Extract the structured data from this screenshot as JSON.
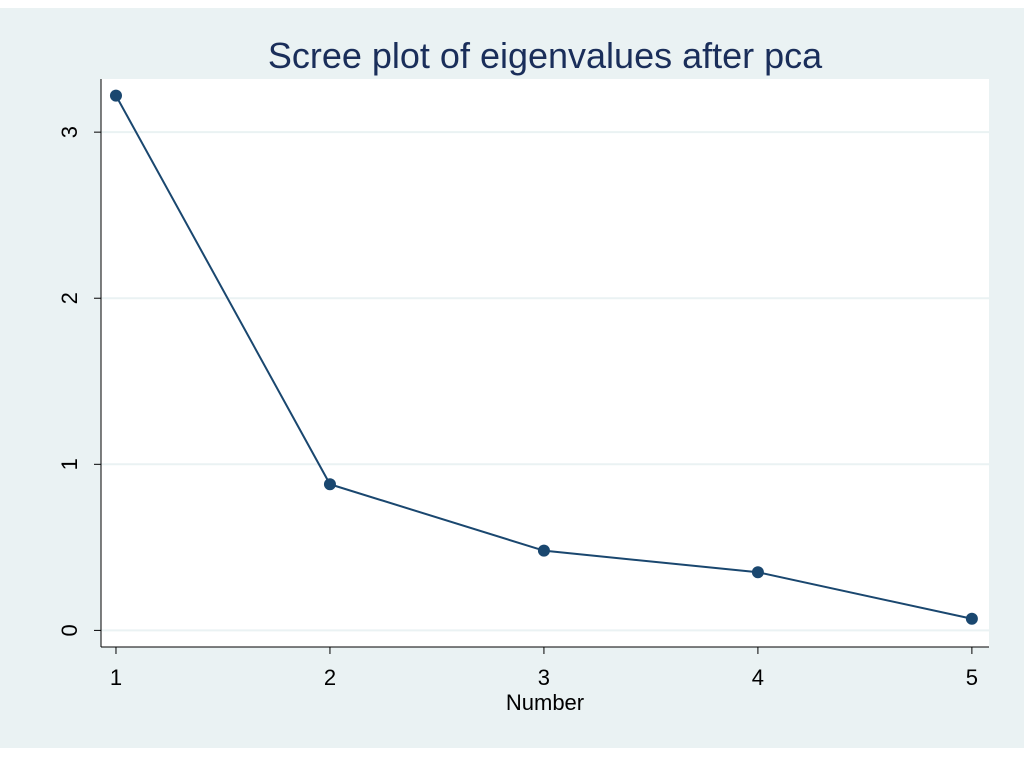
{
  "chart_data": {
    "type": "line",
    "title": "Scree plot of eigenvalues after pca",
    "xlabel": "Number",
    "ylabel": "",
    "x": [
      1,
      2,
      3,
      4,
      5
    ],
    "series": [
      {
        "values": [
          3.22,
          0.88,
          0.48,
          0.35,
          0.07
        ]
      }
    ],
    "xticks": [
      "1",
      "2",
      "3",
      "4",
      "5"
    ],
    "yticks": [
      "0",
      "1",
      "2",
      "3"
    ],
    "xlim": [
      0.93,
      5.08
    ],
    "ylim": [
      -0.1,
      3.32
    ],
    "grid": true,
    "colors": {
      "line": "#1a476f",
      "marker": "#1a476f",
      "grid": "#eaf2f3",
      "plot_bg": "#ffffff",
      "frame_bg": "#eaf2f3",
      "title": "#1a2e5a"
    }
  }
}
